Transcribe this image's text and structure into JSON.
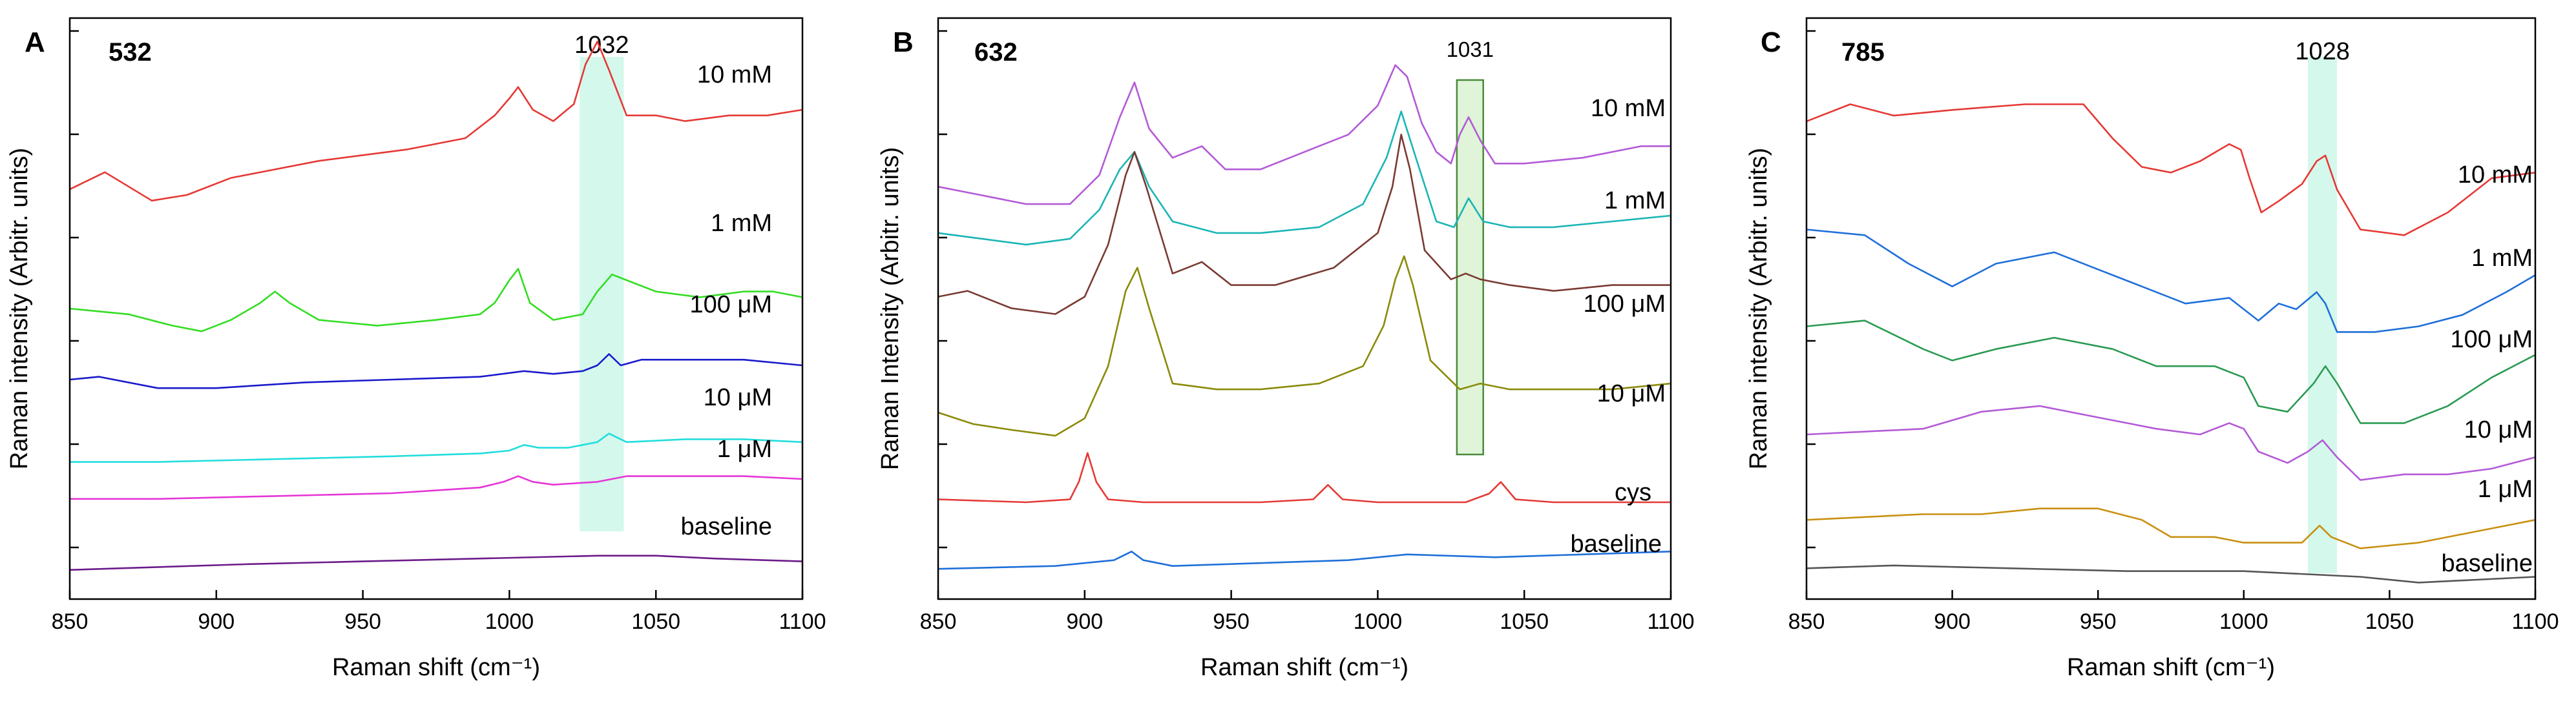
{
  "chart_data": [
    {
      "type": "line",
      "panel": "A",
      "title": "532",
      "xlabel": "Raman shift (cm⁻¹)",
      "ylabel": "Raman intensity (Arbitr. units)",
      "xlim": [
        850,
        1100
      ],
      "ylim": [
        0,
        1
      ],
      "x_ticks": [
        "850",
        "900",
        "950",
        "1000",
        "1050",
        "1100"
      ],
      "y_tick_count": 6,
      "highlight": {
        "label": "1032",
        "x_range": [
          1024,
          1039
        ],
        "color": "#ccf7e9",
        "style": "fill"
      },
      "series": [
        {
          "name": "10 mM",
          "color": "#e53935",
          "x": [
            850,
            862,
            878,
            890,
            905,
            935,
            965,
            985,
            995,
            1000,
            1003,
            1008,
            1015,
            1022,
            1026,
            1030,
            1034,
            1040,
            1050,
            1060,
            1075,
            1088,
            1100
          ],
          "y": [
            0.71,
            0.74,
            0.69,
            0.7,
            0.73,
            0.76,
            0.78,
            0.8,
            0.84,
            0.87,
            0.89,
            0.85,
            0.83,
            0.86,
            0.93,
            0.97,
            0.92,
            0.84,
            0.84,
            0.83,
            0.84,
            0.84,
            0.85
          ]
        },
        {
          "name": "1 mM",
          "color": "#33dd22",
          "x": [
            850,
            870,
            885,
            895,
            905,
            915,
            920,
            925,
            935,
            955,
            975,
            990,
            995,
            1000,
            1003,
            1007,
            1015,
            1025,
            1030,
            1035,
            1040,
            1050,
            1065,
            1080,
            1090,
            1100
          ],
          "y": [
            0.5,
            0.49,
            0.47,
            0.46,
            0.48,
            0.51,
            0.53,
            0.51,
            0.48,
            0.47,
            0.48,
            0.49,
            0.51,
            0.55,
            0.57,
            0.51,
            0.48,
            0.49,
            0.53,
            0.56,
            0.55,
            0.53,
            0.52,
            0.53,
            0.53,
            0.52
          ]
        },
        {
          "name": "100 μM",
          "color": "#1a1acc",
          "x": [
            850,
            860,
            880,
            900,
            930,
            960,
            990,
            1005,
            1015,
            1025,
            1030,
            1034,
            1038,
            1045,
            1060,
            1080,
            1100
          ],
          "y": [
            0.375,
            0.38,
            0.36,
            0.36,
            0.37,
            0.375,
            0.38,
            0.39,
            0.385,
            0.39,
            0.4,
            0.42,
            0.4,
            0.41,
            0.41,
            0.41,
            0.4
          ]
        },
        {
          "name": "10 μM",
          "color": "#22dddd",
          "x": [
            850,
            880,
            920,
            960,
            990,
            1000,
            1005,
            1010,
            1020,
            1030,
            1034,
            1040,
            1060,
            1080,
            1100
          ],
          "y": [
            0.23,
            0.23,
            0.235,
            0.24,
            0.245,
            0.25,
            0.26,
            0.255,
            0.255,
            0.265,
            0.28,
            0.265,
            0.27,
            0.27,
            0.265
          ]
        },
        {
          "name": "1 μM",
          "color": "#e535d6",
          "x": [
            850,
            880,
            920,
            960,
            990,
            998,
            1003,
            1008,
            1015,
            1030,
            1040,
            1060,
            1080,
            1100
          ],
          "y": [
            0.165,
            0.165,
            0.17,
            0.175,
            0.185,
            0.195,
            0.205,
            0.195,
            0.19,
            0.195,
            0.205,
            0.205,
            0.205,
            0.2
          ]
        },
        {
          "name": "baseline",
          "color": "#6b1a8a",
          "x": [
            850,
            880,
            910,
            950,
            990,
            1030,
            1050,
            1070,
            1100
          ],
          "y": [
            0.04,
            0.045,
            0.05,
            0.055,
            0.06,
            0.065,
            0.065,
            0.06,
            0.055
          ]
        }
      ]
    },
    {
      "type": "line",
      "panel": "B",
      "title": "632",
      "xlabel": "Raman shift (cm⁻¹)",
      "ylabel": "Raman Intensity (Arbitr. units)",
      "xlim": [
        850,
        1100
      ],
      "ylim": [
        0,
        1
      ],
      "x_ticks": [
        "850",
        "900",
        "950",
        "1000",
        "1050",
        "1100"
      ],
      "y_tick_count": 6,
      "highlight": {
        "label": "1031",
        "x_range": [
          1027,
          1036
        ],
        "color": "#b8e6a8",
        "style": "outline"
      },
      "series": [
        {
          "name": "10 mM",
          "color": "#b35ad6",
          "x": [
            850,
            860,
            880,
            895,
            905,
            912,
            917,
            922,
            930,
            940,
            948,
            960,
            975,
            990,
            1000,
            1006,
            1010,
            1015,
            1020,
            1025,
            1028,
            1031,
            1035,
            1040,
            1050,
            1070,
            1090,
            1100
          ],
          "y": [
            0.72,
            0.71,
            0.69,
            0.69,
            0.74,
            0.84,
            0.9,
            0.82,
            0.77,
            0.79,
            0.75,
            0.75,
            0.78,
            0.81,
            0.86,
            0.93,
            0.91,
            0.83,
            0.78,
            0.76,
            0.81,
            0.84,
            0.8,
            0.76,
            0.76,
            0.77,
            0.79,
            0.79
          ]
        },
        {
          "name": "1 mM",
          "color": "#1ab5b5",
          "x": [
            850,
            865,
            880,
            895,
            905,
            912,
            917,
            922,
            930,
            945,
            960,
            980,
            995,
            1003,
            1008,
            1013,
            1020,
            1026,
            1031,
            1036,
            1045,
            1060,
            1080,
            1100
          ],
          "y": [
            0.64,
            0.63,
            0.62,
            0.63,
            0.68,
            0.75,
            0.78,
            0.72,
            0.66,
            0.64,
            0.64,
            0.65,
            0.69,
            0.77,
            0.85,
            0.77,
            0.66,
            0.65,
            0.7,
            0.66,
            0.65,
            0.65,
            0.66,
            0.67
          ]
        },
        {
          "name": "100 μM",
          "color": "#7a3a32",
          "x": [
            850,
            860,
            875,
            890,
            900,
            908,
            914,
            917,
            921,
            930,
            940,
            950,
            965,
            985,
            1000,
            1005,
            1008,
            1011,
            1016,
            1025,
            1030,
            1035,
            1045,
            1060,
            1080,
            1100
          ],
          "y": [
            0.53,
            0.54,
            0.51,
            0.5,
            0.53,
            0.62,
            0.74,
            0.78,
            0.72,
            0.57,
            0.59,
            0.55,
            0.55,
            0.58,
            0.64,
            0.72,
            0.81,
            0.75,
            0.61,
            0.56,
            0.57,
            0.56,
            0.55,
            0.54,
            0.55,
            0.55
          ]
        },
        {
          "name": "10 μM",
          "color": "#8a8a0a",
          "x": [
            850,
            862,
            875,
            890,
            900,
            908,
            914,
            918,
            922,
            930,
            945,
            960,
            980,
            995,
            1002,
            1006,
            1009,
            1012,
            1018,
            1028,
            1035,
            1045,
            1060,
            1080,
            1100
          ],
          "y": [
            0.33,
            0.31,
            0.3,
            0.29,
            0.32,
            0.41,
            0.54,
            0.58,
            0.51,
            0.38,
            0.37,
            0.37,
            0.38,
            0.41,
            0.48,
            0.56,
            0.6,
            0.55,
            0.42,
            0.37,
            0.38,
            0.37,
            0.37,
            0.37,
            0.38
          ]
        },
        {
          "name": "cys",
          "color": "#e53935",
          "x": [
            850,
            880,
            895,
            898,
            901,
            904,
            908,
            920,
            960,
            978,
            983,
            988,
            1000,
            1030,
            1038,
            1042,
            1047,
            1060,
            1100
          ],
          "y": [
            0.18,
            0.175,
            0.18,
            0.21,
            0.26,
            0.21,
            0.18,
            0.175,
            0.175,
            0.18,
            0.205,
            0.18,
            0.175,
            0.175,
            0.19,
            0.21,
            0.18,
            0.175,
            0.175
          ]
        },
        {
          "name": "baseline",
          "color": "#1e6fd9",
          "x": [
            850,
            890,
            910,
            916,
            920,
            930,
            960,
            990,
            1010,
            1040,
            1070,
            1100
          ],
          "y": [
            0.06,
            0.065,
            0.075,
            0.09,
            0.075,
            0.065,
            0.07,
            0.075,
            0.085,
            0.08,
            0.085,
            0.09
          ]
        }
      ]
    },
    {
      "type": "line",
      "panel": "C",
      "title": "785",
      "xlabel": "Raman shift (cm⁻¹)",
      "ylabel": "Raman intensity (Arbitr. units)",
      "xlim": [
        850,
        1100
      ],
      "ylim": [
        0,
        1
      ],
      "x_ticks": [
        "850",
        "900",
        "950",
        "1000",
        "1050",
        "1100"
      ],
      "y_tick_count": 6,
      "highlight": {
        "label": "1028",
        "x_range": [
          1022,
          1032
        ],
        "color": "#ccf7e9",
        "style": "fill"
      },
      "series": [
        {
          "name": "10 mM",
          "color": "#e53935",
          "x": [
            850,
            865,
            880,
            900,
            925,
            945,
            955,
            965,
            975,
            985,
            995,
            999,
            1002,
            1006,
            1012,
            1020,
            1025,
            1028,
            1032,
            1040,
            1055,
            1070,
            1085,
            1100
          ],
          "y": [
            0.83,
            0.86,
            0.84,
            0.85,
            0.86,
            0.86,
            0.8,
            0.75,
            0.74,
            0.76,
            0.79,
            0.78,
            0.73,
            0.67,
            0.69,
            0.72,
            0.76,
            0.77,
            0.71,
            0.64,
            0.63,
            0.67,
            0.73,
            0.74
          ]
        },
        {
          "name": "1 mM",
          "color": "#1e6fd9",
          "x": [
            850,
            870,
            885,
            900,
            915,
            935,
            950,
            965,
            980,
            995,
            1005,
            1012,
            1018,
            1025,
            1028,
            1032,
            1045,
            1060,
            1075,
            1090,
            1100
          ],
          "y": [
            0.64,
            0.63,
            0.58,
            0.54,
            0.58,
            0.6,
            0.57,
            0.54,
            0.51,
            0.52,
            0.48,
            0.51,
            0.5,
            0.53,
            0.51,
            0.46,
            0.46,
            0.47,
            0.49,
            0.53,
            0.56
          ]
        },
        {
          "name": "100 μM",
          "color": "#2a9a52",
          "x": [
            850,
            870,
            890,
            900,
            915,
            935,
            955,
            970,
            990,
            1000,
            1005,
            1015,
            1024,
            1028,
            1032,
            1040,
            1055,
            1070,
            1085,
            1100
          ],
          "y": [
            0.47,
            0.48,
            0.43,
            0.41,
            0.43,
            0.45,
            0.43,
            0.4,
            0.4,
            0.38,
            0.33,
            0.32,
            0.37,
            0.4,
            0.37,
            0.3,
            0.3,
            0.33,
            0.38,
            0.42
          ]
        },
        {
          "name": "10 μM",
          "color": "#b35ad6",
          "x": [
            850,
            870,
            890,
            910,
            930,
            950,
            970,
            985,
            995,
            1000,
            1005,
            1015,
            1022,
            1027,
            1032,
            1040,
            1055,
            1070,
            1085,
            1100
          ],
          "y": [
            0.28,
            0.285,
            0.29,
            0.32,
            0.33,
            0.31,
            0.29,
            0.28,
            0.3,
            0.29,
            0.25,
            0.23,
            0.25,
            0.27,
            0.24,
            0.2,
            0.21,
            0.21,
            0.22,
            0.24
          ]
        },
        {
          "name": "1 μM",
          "color": "#c89010",
          "x": [
            850,
            870,
            890,
            910,
            930,
            950,
            965,
            975,
            990,
            1000,
            1010,
            1020,
            1026,
            1030,
            1040,
            1060,
            1080,
            1100
          ],
          "y": [
            0.13,
            0.135,
            0.14,
            0.14,
            0.15,
            0.15,
            0.13,
            0.1,
            0.1,
            0.09,
            0.09,
            0.09,
            0.12,
            0.1,
            0.08,
            0.09,
            0.11,
            0.13
          ]
        },
        {
          "name": "baseline",
          "color": "#555555",
          "x": [
            850,
            880,
            920,
            960,
            1000,
            1040,
            1060,
            1080,
            1100
          ],
          "y": [
            0.045,
            0.05,
            0.045,
            0.04,
            0.04,
            0.03,
            0.02,
            0.025,
            0.03
          ]
        }
      ]
    }
  ]
}
